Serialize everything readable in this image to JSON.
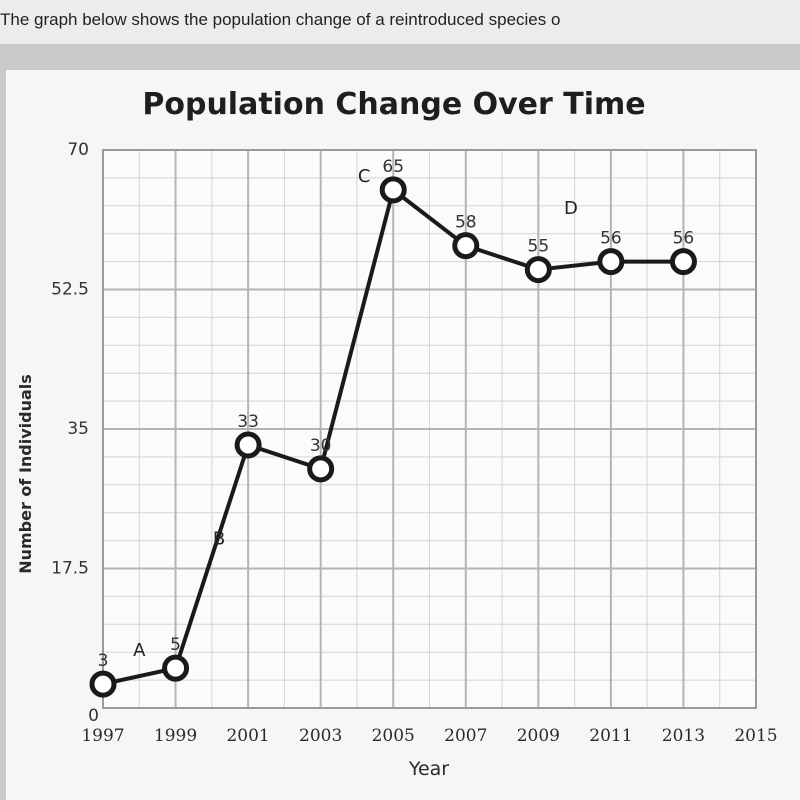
{
  "prompt": {
    "text": "The graph below shows the population change of a reintroduced species o"
  },
  "colors": {
    "line": "#1a1a1a",
    "grid": "#b4b4b4",
    "marker_fill": "#ffffff",
    "background": "#f6f6f6"
  },
  "chart_data": {
    "type": "line",
    "title": "Population Change Over Time",
    "xlabel": "Year",
    "ylabel": "Number of Individuals",
    "xlim": [
      1997,
      2015
    ],
    "ylim": [
      0,
      70
    ],
    "x_ticks": [
      "1997",
      "1999",
      "2001",
      "2003",
      "2005",
      "2007",
      "2009",
      "2011",
      "2013",
      "2015"
    ],
    "y_ticks": [
      "0",
      "17.5",
      "35",
      "52.5",
      "70"
    ],
    "grid": true,
    "series": [
      {
        "x": [
          1997,
          1999,
          2001,
          2003,
          2005,
          2007,
          2009,
          2011,
          2013
        ],
        "y": [
          3,
          5,
          33,
          30,
          65,
          58,
          55,
          56,
          56
        ],
        "labels": [
          "3",
          "5",
          "33",
          "30",
          "65",
          "58",
          "55",
          "56",
          "56"
        ]
      }
    ],
    "annotations": [
      {
        "text": "A",
        "x": 1998.0,
        "y": 6.5
      },
      {
        "text": "B",
        "x": 2000.2,
        "y": 20.5
      },
      {
        "text": "C",
        "x": 2004.2,
        "y": 66.0
      },
      {
        "text": "D",
        "x": 2009.9,
        "y": 62.0
      }
    ]
  }
}
